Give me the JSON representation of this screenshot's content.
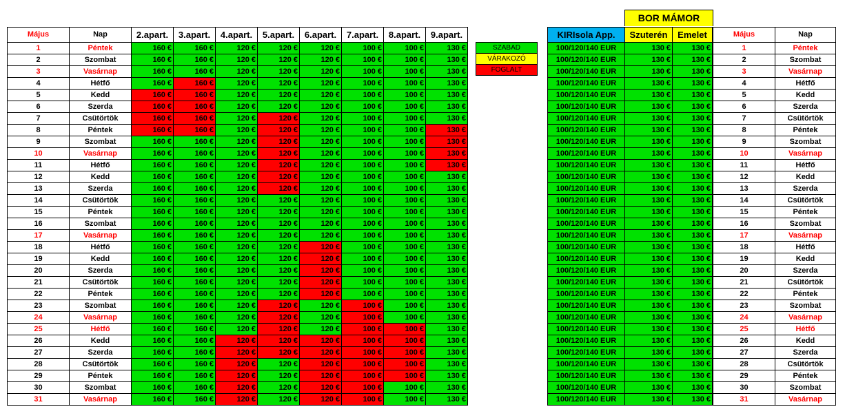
{
  "month_label": "Május",
  "day_label": "Nap",
  "apartments": [
    "2.apart.",
    "3.apart.",
    "4.apart.",
    "5.apart.",
    "6.apart.",
    "7.apart.",
    "8.apart.",
    "9.apart."
  ],
  "legend": {
    "szabad": "SZABAD",
    "varakozo": "VÁRAKOZÓ",
    "foglalt": "FOGLALT"
  },
  "right_group_title": "BOR  MÁMOR",
  "right_headers": {
    "kiri": "KIRIsola App.",
    "szuteren": "Szuterén",
    "emelet": "Emelet"
  },
  "colors": {
    "szabad": "#00e100",
    "foglalt": "#ff0000",
    "varakozo": "#ffff00",
    "kiri_header": "#00b0f0"
  },
  "rows": [
    {
      "day": "1",
      "name": "Péntek",
      "red": true,
      "prices": [
        "160 €",
        "160 €",
        "120 €",
        "120 €",
        "120 €",
        "100 €",
        "100 €",
        "130 €"
      ],
      "status": "GGGGGGGG",
      "kiri": "100/120/140 EUR",
      "szuteren": "130 €",
      "emelet": "130 €"
    },
    {
      "day": "2",
      "name": "Szombat",
      "red": false,
      "prices": [
        "160 €",
        "160 €",
        "120 €",
        "120 €",
        "120 €",
        "100 €",
        "100 €",
        "130 €"
      ],
      "status": "GGGGGGGG",
      "kiri": "100/120/140 EUR",
      "szuteren": "130 €",
      "emelet": "130 €"
    },
    {
      "day": "3",
      "name": "Vasárnap",
      "red": true,
      "prices": [
        "160 €",
        "160 €",
        "120 €",
        "120 €",
        "120 €",
        "100 €",
        "100 €",
        "130 €"
      ],
      "status": "GGGGGGGG",
      "kiri": "100/120/140 EUR",
      "szuteren": "130 €",
      "emelet": "130 €"
    },
    {
      "day": "4",
      "name": "Hétfő",
      "red": false,
      "prices": [
        "160 €",
        "160 €",
        "120 €",
        "120 €",
        "120 €",
        "100 €",
        "100 €",
        "130 €"
      ],
      "status": "GFGGGGGG",
      "kiri": "100/120/140 EUR",
      "szuteren": "130 €",
      "emelet": "130 €"
    },
    {
      "day": "5",
      "name": "Kedd",
      "red": false,
      "prices": [
        "160 €",
        "160 €",
        "120 €",
        "120 €",
        "120 €",
        "100 €",
        "100 €",
        "130 €"
      ],
      "status": "FFGGGGGG",
      "kiri": "100/120/140 EUR",
      "szuteren": "130 €",
      "emelet": "130 €"
    },
    {
      "day": "6",
      "name": "Szerda",
      "red": false,
      "prices": [
        "160 €",
        "160 €",
        "120 €",
        "120 €",
        "120 €",
        "100 €",
        "100 €",
        "130 €"
      ],
      "status": "FFGGGGGG",
      "kiri": "100/120/140 EUR",
      "szuteren": "130 €",
      "emelet": "130 €"
    },
    {
      "day": "7",
      "name": "Csütörtök",
      "red": false,
      "prices": [
        "160 €",
        "160 €",
        "120 €",
        "120 €",
        "120 €",
        "100 €",
        "100 €",
        "130 €"
      ],
      "status": "FFGFGGGG",
      "kiri": "100/120/140 EUR",
      "szuteren": "130 €",
      "emelet": "130 €"
    },
    {
      "day": "8",
      "name": "Péntek",
      "red": false,
      "prices": [
        "160 €",
        "160 €",
        "120 €",
        "120 €",
        "120 €",
        "100 €",
        "100 €",
        "130 €"
      ],
      "status": "FFGFGGGF",
      "kiri": "100/120/140 EUR",
      "szuteren": "130 €",
      "emelet": "130 €"
    },
    {
      "day": "9",
      "name": "Szombat",
      "red": false,
      "prices": [
        "160 €",
        "160 €",
        "120 €",
        "120 €",
        "120 €",
        "100 €",
        "100 €",
        "130 €"
      ],
      "status": "GGGFGGGF",
      "kiri": "100/120/140 EUR",
      "szuteren": "130 €",
      "emelet": "130 €"
    },
    {
      "day": "10",
      "name": "Vasárnap",
      "red": true,
      "prices": [
        "160 €",
        "160 €",
        "120 €",
        "120 €",
        "120 €",
        "100 €",
        "100 €",
        "130 €"
      ],
      "status": "GGGFGGGF",
      "kiri": "100/120/140 EUR",
      "szuteren": "130 €",
      "emelet": "130 €"
    },
    {
      "day": "11",
      "name": "Hétfő",
      "red": false,
      "prices": [
        "160 €",
        "160 €",
        "120 €",
        "120 €",
        "120 €",
        "100 €",
        "100 €",
        "130 €"
      ],
      "status": "GGGFGGGF",
      "kiri": "100/120/140 EUR",
      "szuteren": "130 €",
      "emelet": "130 €"
    },
    {
      "day": "12",
      "name": "Kedd",
      "red": false,
      "prices": [
        "160 €",
        "160 €",
        "120 €",
        "120 €",
        "120 €",
        "100 €",
        "100 €",
        "130 €"
      ],
      "status": "GGGFGGGG",
      "kiri": "100/120/140 EUR",
      "szuteren": "130 €",
      "emelet": "130 €"
    },
    {
      "day": "13",
      "name": "Szerda",
      "red": false,
      "prices": [
        "160 €",
        "160 €",
        "120 €",
        "120 €",
        "120 €",
        "100 €",
        "100 €",
        "130 €"
      ],
      "status": "GGGFGGGG",
      "kiri": "100/120/140 EUR",
      "szuteren": "130 €",
      "emelet": "130 €"
    },
    {
      "day": "14",
      "name": "Csütörtök",
      "red": false,
      "prices": [
        "160 €",
        "160 €",
        "120 €",
        "120 €",
        "120 €",
        "100 €",
        "100 €",
        "130 €"
      ],
      "status": "GGGGGGGG",
      "kiri": "100/120/140 EUR",
      "szuteren": "130 €",
      "emelet": "130 €"
    },
    {
      "day": "15",
      "name": "Péntek",
      "red": false,
      "prices": [
        "160 €",
        "160 €",
        "120 €",
        "120 €",
        "120 €",
        "100 €",
        "100 €",
        "130 €"
      ],
      "status": "GGGGGGGG",
      "kiri": "100/120/140 EUR",
      "szuteren": "130 €",
      "emelet": "130 €"
    },
    {
      "day": "16",
      "name": "Szombat",
      "red": false,
      "prices": [
        "160 €",
        "160 €",
        "120 €",
        "120 €",
        "120 €",
        "100 €",
        "100 €",
        "130 €"
      ],
      "status": "GGGGGGGG",
      "kiri": "100/120/140 EUR",
      "szuteren": "130 €",
      "emelet": "130 €"
    },
    {
      "day": "17",
      "name": "Vasárnap",
      "red": true,
      "prices": [
        "160 €",
        "160 €",
        "120 €",
        "120 €",
        "120 €",
        "100 €",
        "100 €",
        "130 €"
      ],
      "status": "GGGGGGGG",
      "kiri": "100/120/140 EUR",
      "szuteren": "130 €",
      "emelet": "130 €"
    },
    {
      "day": "18",
      "name": "Hétfő",
      "red": false,
      "prices": [
        "160 €",
        "160 €",
        "120 €",
        "120 €",
        "120 €",
        "100 €",
        "100 €",
        "130 €"
      ],
      "status": "GGGGFGGG",
      "kiri": "100/120/140 EUR",
      "szuteren": "130 €",
      "emelet": "130 €"
    },
    {
      "day": "19",
      "name": "Kedd",
      "red": false,
      "prices": [
        "160 €",
        "160 €",
        "120 €",
        "120 €",
        "120 €",
        "100 €",
        "100 €",
        "130 €"
      ],
      "status": "GGGGFGGG",
      "kiri": "100/120/140 EUR",
      "szuteren": "130 €",
      "emelet": "130 €"
    },
    {
      "day": "20",
      "name": "Szerda",
      "red": false,
      "prices": [
        "160 €",
        "160 €",
        "120 €",
        "120 €",
        "120 €",
        "100 €",
        "100 €",
        "130 €"
      ],
      "status": "GGGGFGGG",
      "kiri": "100/120/140 EUR",
      "szuteren": "130 €",
      "emelet": "130 €"
    },
    {
      "day": "21",
      "name": "Csütörtök",
      "red": false,
      "prices": [
        "160 €",
        "160 €",
        "120 €",
        "120 €",
        "120 €",
        "100 €",
        "100 €",
        "130 €"
      ],
      "status": "GGGGFGGG",
      "kiri": "100/120/140 EUR",
      "szuteren": "130 €",
      "emelet": "130 €"
    },
    {
      "day": "22",
      "name": "Péntek",
      "red": false,
      "prices": [
        "160 €",
        "160 €",
        "120 €",
        "120 €",
        "120 €",
        "100 €",
        "100 €",
        "130 €"
      ],
      "status": "GGGGFGGG",
      "kiri": "100/120/140 EUR",
      "szuteren": "130 €",
      "emelet": "130 €"
    },
    {
      "day": "23",
      "name": "Szombat",
      "red": false,
      "prices": [
        "160 €",
        "160 €",
        "120 €",
        "120 €",
        "120 €",
        "100 €",
        "100 €",
        "130 €"
      ],
      "status": "GGGFGFGG",
      "kiri": "100/120/140 EUR",
      "szuteren": "130 €",
      "emelet": "130 €"
    },
    {
      "day": "24",
      "name": "Vasárnap",
      "red": true,
      "prices": [
        "160 €",
        "160 €",
        "120 €",
        "120 €",
        "120 €",
        "100 €",
        "100 €",
        "130 €"
      ],
      "status": "GGGFGFGG",
      "kiri": "100/120/140 EUR",
      "szuteren": "130 €",
      "emelet": "130 €"
    },
    {
      "day": "25",
      "name": "Hétfő",
      "red": true,
      "prices": [
        "160 €",
        "160 €",
        "120 €",
        "120 €",
        "120 €",
        "100 €",
        "100 €",
        "130 €"
      ],
      "status": "GGGFGFFG",
      "kiri": "100/120/140 EUR",
      "szuteren": "130 €",
      "emelet": "130 €"
    },
    {
      "day": "26",
      "name": "Kedd",
      "red": false,
      "prices": [
        "160 €",
        "160 €",
        "120 €",
        "120 €",
        "120 €",
        "100 €",
        "100 €",
        "130 €"
      ],
      "status": "GGFFFFFG",
      "kiri": "100/120/140 EUR",
      "szuteren": "130 €",
      "emelet": "130 €"
    },
    {
      "day": "27",
      "name": "Szerda",
      "red": false,
      "prices": [
        "160 €",
        "160 €",
        "120 €",
        "120 €",
        "120 €",
        "100 €",
        "100 €",
        "130 €"
      ],
      "status": "GGFFFFFG",
      "kiri": "100/120/140 EUR",
      "szuteren": "130 €",
      "emelet": "130 €"
    },
    {
      "day": "28",
      "name": "Csütörtök",
      "red": false,
      "prices": [
        "160 €",
        "160 €",
        "120 €",
        "120 €",
        "120 €",
        "100 €",
        "100 €",
        "130 €"
      ],
      "status": "GGFGFFFG",
      "kiri": "100/120/140 EUR",
      "szuteren": "130 €",
      "emelet": "130 €"
    },
    {
      "day": "29",
      "name": "Péntek",
      "red": false,
      "prices": [
        "160 €",
        "160 €",
        "120 €",
        "120 €",
        "120 €",
        "100 €",
        "100 €",
        "130 €"
      ],
      "status": "GGFGFFFG",
      "kiri": "100/120/140 EUR",
      "szuteren": "130 €",
      "emelet": "130 €"
    },
    {
      "day": "30",
      "name": "Szombat",
      "red": false,
      "prices": [
        "160 €",
        "160 €",
        "120 €",
        "120 €",
        "120 €",
        "100 €",
        "100 €",
        "130 €"
      ],
      "status": "GGFGFFGG",
      "kiri": "100/120/140 EUR",
      "szuteren": "130 €",
      "emelet": "130 €"
    },
    {
      "day": "31",
      "name": "Vasárnap",
      "red": true,
      "prices": [
        "160 €",
        "160 €",
        "120 €",
        "120 €",
        "120 €",
        "100 €",
        "100 €",
        "130 €"
      ],
      "status": "GGFGFFGG",
      "kiri": "100/120/140 EUR",
      "szuteren": "130 €",
      "emelet": "130 €"
    }
  ]
}
